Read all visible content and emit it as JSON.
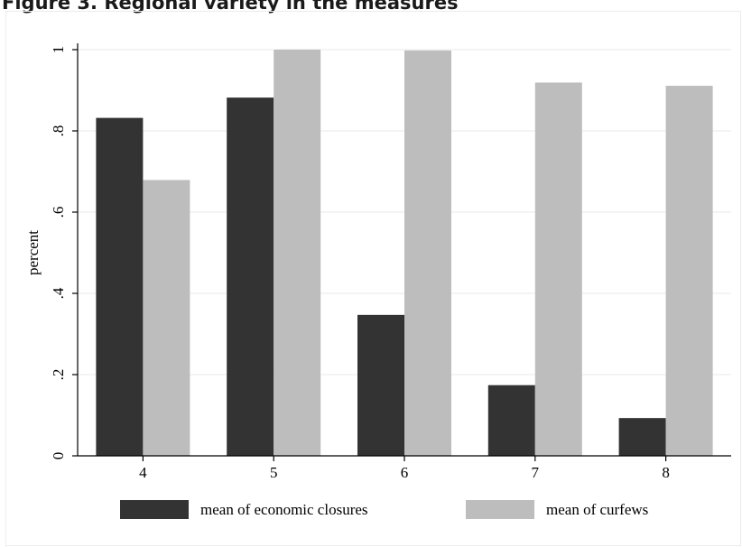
{
  "figure": {
    "heading": "Figure 3. Regional variety in the measures"
  },
  "chart_data": {
    "type": "bar",
    "title": "",
    "xlabel": "",
    "ylabel": "percent",
    "categories": [
      "4",
      "5",
      "6",
      "7",
      "8"
    ],
    "series": [
      {
        "name": "mean of economic closures",
        "color": "#333333",
        "values": [
          0.832,
          0.882,
          0.347,
          0.174,
          0.093
        ]
      },
      {
        "name": "mean of curfews",
        "color": "#bdbdbd",
        "values": [
          0.679,
          1.0,
          0.998,
          0.919,
          0.911
        ]
      }
    ],
    "ylim": [
      0,
      1
    ],
    "yticks": [
      0,
      0.2,
      0.4,
      0.6,
      0.8,
      1
    ],
    "ytick_labels": [
      "0",
      ".2",
      ".4",
      ".6",
      ".8",
      "1"
    ],
    "grid": true,
    "legend_position": "bottom"
  }
}
